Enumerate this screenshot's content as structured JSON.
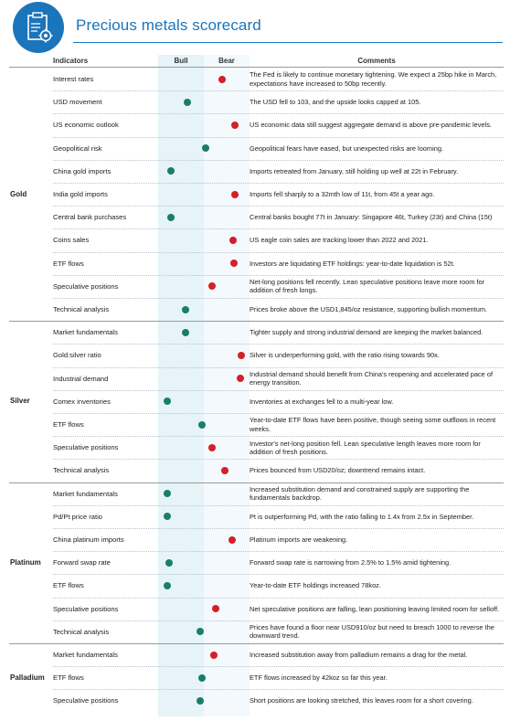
{
  "title": "Precious metals scorecard",
  "logo_icon": "clipboard-gear-icon",
  "columns": {
    "indicators": "Indicators",
    "bull": "Bull",
    "bear": "Bear",
    "comments": "Comments"
  },
  "colors": {
    "accent": "#1b75bb",
    "bull": "#1a7e6a",
    "bear": "#d61f26"
  },
  "groups": [
    {
      "name": "Gold",
      "rows": [
        {
          "indicator": "Interest rates",
          "signal": "bear",
          "level": 0.72,
          "comment": "The Fed is likely to continue monetary tightening. We expect a 25bp hike in March, expectations have increased to 50bp recently."
        },
        {
          "indicator": "USD movement",
          "signal": "bull",
          "level": 0.3,
          "comment": "The USD fell to 103, and the upside looks capped at 105."
        },
        {
          "indicator": "US economic outlook",
          "signal": "bear",
          "level": 0.88,
          "comment": "US economic data still suggest aggregate demand is above pre-pandemic levels."
        },
        {
          "indicator": "Geopolitical risk",
          "signal": "bull",
          "level": 0.52,
          "comment": "Geopolitical fears have eased, but unexpected risks are looming."
        },
        {
          "indicator": "China gold imports",
          "signal": "bull",
          "level": 0.1,
          "comment": "Imports retreated from January, still holding up well at 22t in February."
        },
        {
          "indicator": "India gold imports",
          "signal": "bear",
          "level": 0.88,
          "comment": "Imports fell sharply to a 32mth low of 11t, from 45t a year ago."
        },
        {
          "indicator": "Central bank purchases",
          "signal": "bull",
          "level": 0.1,
          "comment": "Central banks bought 77t in January: Singapore 46t, Turkey (23t) and China (15t)"
        },
        {
          "indicator": "Coins sales",
          "signal": "bear",
          "level": 0.86,
          "comment": "US eagle coin sales are tracking lower than 2022 and 2021."
        },
        {
          "indicator": "ETF flows",
          "signal": "bear",
          "level": 0.87,
          "comment": "Investors are liquidating ETF holdings: year-to-date liquidation is 52t."
        },
        {
          "indicator": "Speculative positions",
          "signal": "bear",
          "level": 0.6,
          "comment": "Net-long positions fell recently. Lean speculative positions leave more room for addition of fresh longs."
        },
        {
          "indicator": "Technical analysis",
          "signal": "bull",
          "level": 0.28,
          "comment": "Prices broke above the USD1,845/oz resistance, supporting bullish momentum."
        }
      ]
    },
    {
      "name": "Silver",
      "rows": [
        {
          "indicator": "Market fundamentals",
          "signal": "bull",
          "level": 0.28,
          "comment": "Tighter supply and strong industrial demand are keeping the market balanced."
        },
        {
          "indicator": "Gold:silver ratio",
          "signal": "bear",
          "level": 0.96,
          "comment": "Silver is underperforming gold, with the ratio rising towards 90x."
        },
        {
          "indicator": "Industrial demand",
          "signal": "bear",
          "level": 0.94,
          "comment": "Industrial demand should benefit from China's reopening and accelerated pace of energy transition."
        },
        {
          "indicator": "Comex inventories",
          "signal": "bull",
          "level": 0.05,
          "comment": "Inventories at exchanges fell to a multi-year low."
        },
        {
          "indicator": "ETF flows",
          "signal": "bull",
          "level": 0.48,
          "comment": "Year-to-date ETF flows have been positive, though seeing some outflows in recent weeks."
        },
        {
          "indicator": "Speculative positions",
          "signal": "bear",
          "level": 0.6,
          "comment": "Investor's net-long position fell. Lean speculative length leaves more room for addition of fresh positions."
        },
        {
          "indicator": "Technical analysis",
          "signal": "bear",
          "level": 0.76,
          "comment": "Prices bounced from USD20/oz; downtrend remains intact."
        }
      ]
    },
    {
      "name": "Platinum",
      "rows": [
        {
          "indicator": "Market fundamentals",
          "signal": "bull",
          "level": 0.06,
          "comment": "Increased substitution demand and constrained supply are supporting the fundamentals backdrop."
        },
        {
          "indicator": "Pd/Pt price ratio",
          "signal": "bull",
          "level": 0.06,
          "comment": "Pt is outperforming Pd, with the ratio falling to 1.4x from 2.5x in September."
        },
        {
          "indicator": "China platinum imports",
          "signal": "bear",
          "level": 0.84,
          "comment": "Platinum imports are weakening."
        },
        {
          "indicator": "Forward swap rate",
          "signal": "bull",
          "level": 0.08,
          "comment": "Forward swap rate is narrowing from 2.5% to 1.5% amid tightening."
        },
        {
          "indicator": "ETF flows",
          "signal": "bull",
          "level": 0.06,
          "comment": "Year-to-date ETF holdings increased 78koz."
        },
        {
          "indicator": "Speculative positions",
          "signal": "bear",
          "level": 0.64,
          "comment": "Net speculative positions are falling, lean positioning leaving limited room for selloff."
        },
        {
          "indicator": "Technical analysis",
          "signal": "bull",
          "level": 0.46,
          "comment": "Prices have found a floor near USD910/oz but need to breach 1000 to reverse the downward trend."
        }
      ]
    },
    {
      "name": "Palladium",
      "rows": [
        {
          "indicator": "Market fundamentals",
          "signal": "bear",
          "level": 0.62,
          "comment": "Increased substitution away from palladium remains a drag for the metal."
        },
        {
          "indicator": "ETF flows",
          "signal": "bull",
          "level": 0.48,
          "comment": "ETF flows increased by 42koz so far this year."
        },
        {
          "indicator": "Speculative positions",
          "signal": "bull",
          "level": 0.46,
          "comment": "Short positions are looking stretched, this leaves room for a short covering."
        }
      ]
    }
  ]
}
